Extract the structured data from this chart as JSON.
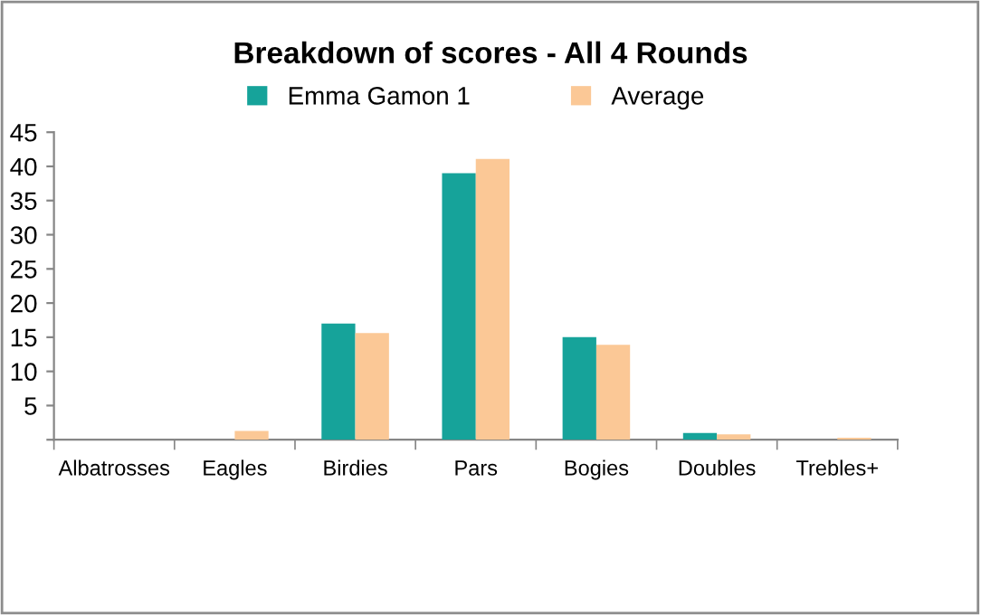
{
  "chart_data": {
    "type": "bar",
    "title": "Breakdown of scores - All 4 Rounds",
    "categories": [
      "Albatrosses",
      "Eagles",
      "Birdies",
      "Pars",
      "Bogies",
      "Doubles",
      "Trebles+"
    ],
    "series": [
      {
        "name": "Emma Gamon 1",
        "color": "#16a39a",
        "values": [
          0,
          0,
          17,
          39,
          15,
          1,
          0
        ]
      },
      {
        "name": "Average",
        "color": "#fbc896",
        "values": [
          0,
          1.3,
          15.6,
          41.1,
          13.9,
          0.8,
          0.3
        ]
      }
    ],
    "ylim": [
      0,
      45
    ],
    "yticks": [
      {
        "value": 0,
        "label": null
      },
      5,
      10,
      15,
      20,
      25,
      30,
      35,
      40,
      45
    ],
    "grid": false,
    "legend": "top"
  }
}
